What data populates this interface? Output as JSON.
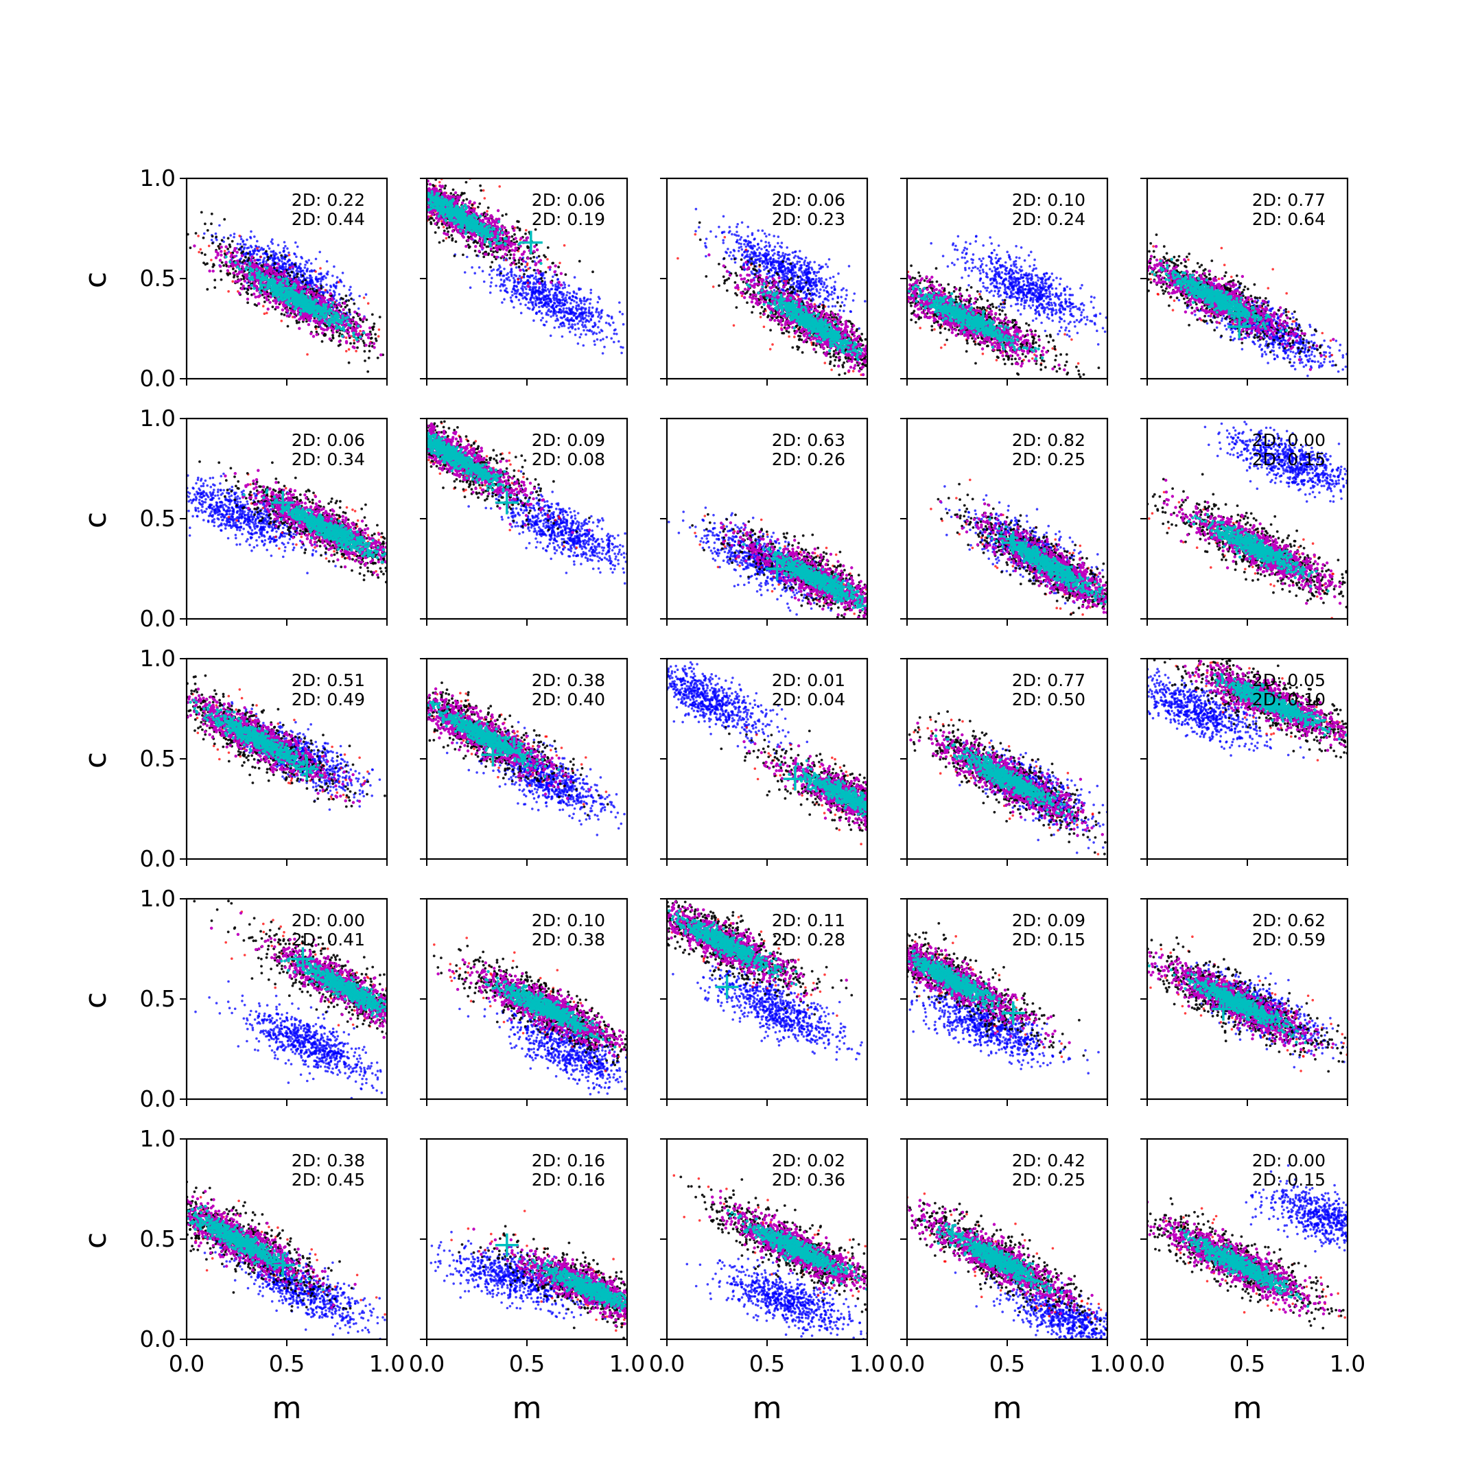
{
  "chart_data": {
    "type": "scatter",
    "rows": 5,
    "cols": 5,
    "xlabel": "m",
    "ylabel": "c",
    "xlim": [
      0.0,
      1.0
    ],
    "ylim": [
      0.0,
      1.0
    ],
    "xticks": [
      "0.0",
      "0.5",
      "1.0"
    ],
    "yticks": [
      "0.0",
      "0.5",
      "1.0"
    ],
    "colors": {
      "blue": "#0000ff",
      "red": "#ff0000",
      "black": "#000000",
      "magenta": "#bf00bf",
      "cyan": "#00bfbf"
    },
    "panels": [
      {
        "stat1": "2D: 0.22",
        "stat2": "2D: 0.44",
        "main": {
          "cx": 0.55,
          "cy": 0.4,
          "slope": -0.55
        },
        "blue": {
          "cx": 0.5,
          "cy": 0.52,
          "slope": -0.5
        },
        "cross": null
      },
      {
        "stat1": "2D: 0.06",
        "stat2": "2D: 0.19",
        "main": {
          "cx": 0.15,
          "cy": 0.82,
          "slope": -0.6
        },
        "blue": {
          "cx": 0.62,
          "cy": 0.4,
          "slope": -0.55
        },
        "cross": [
          0.52,
          0.68
        ]
      },
      {
        "stat1": "2D: 0.06",
        "stat2": "2D: 0.23",
        "main": {
          "cx": 0.72,
          "cy": 0.28,
          "slope": -0.65
        },
        "blue": {
          "cx": 0.58,
          "cy": 0.55,
          "slope": -0.55
        },
        "cross": null
      },
      {
        "stat1": "2D: 0.10",
        "stat2": "2D: 0.24",
        "main": {
          "cx": 0.3,
          "cy": 0.3,
          "slope": -0.5
        },
        "blue": {
          "cx": 0.6,
          "cy": 0.45,
          "slope": -0.5
        },
        "cross": [
          0.38,
          0.28
        ]
      },
      {
        "stat1": "2D: 0.77",
        "stat2": "2D: 0.64",
        "main": {
          "cx": 0.35,
          "cy": 0.4,
          "slope": -0.5
        },
        "blue": {
          "cx": 0.6,
          "cy": 0.25,
          "slope": -0.5
        },
        "cross": [
          0.46,
          0.26
        ]
      },
      {
        "stat1": "2D: 0.06",
        "stat2": "2D: 0.34",
        "main": {
          "cx": 0.7,
          "cy": 0.45,
          "slope": -0.5
        },
        "blue": {
          "cx": 0.28,
          "cy": 0.52,
          "slope": -0.4
        },
        "cross": [
          0.48,
          0.58
        ]
      },
      {
        "stat1": "2D: 0.09",
        "stat2": "2D: 0.08",
        "main": {
          "cx": 0.15,
          "cy": 0.8,
          "slope": -0.6
        },
        "blue": {
          "cx": 0.68,
          "cy": 0.44,
          "slope": -0.5
        },
        "cross": [
          0.4,
          0.58
        ]
      },
      {
        "stat1": "2D: 0.63",
        "stat2": "2D: 0.26",
        "main": {
          "cx": 0.75,
          "cy": 0.2,
          "slope": -0.5
        },
        "blue": {
          "cx": 0.5,
          "cy": 0.28,
          "slope": -0.5
        },
        "cross": [
          0.55,
          0.25
        ]
      },
      {
        "stat1": "2D: 0.82",
        "stat2": "2D: 0.25",
        "main": {
          "cx": 0.72,
          "cy": 0.26,
          "slope": -0.6
        },
        "blue": {
          "cx": 0.62,
          "cy": 0.33,
          "slope": -0.6
        },
        "cross": [
          0.53,
          0.38
        ]
      },
      {
        "stat1": "2D: 0.00",
        "stat2": "2D: 0.15",
        "main": {
          "cx": 0.55,
          "cy": 0.35,
          "slope": -0.5
        },
        "blue": {
          "cx": 0.72,
          "cy": 0.78,
          "slope": -0.4
        },
        "cross": null
      },
      {
        "stat1": "2D: 0.51",
        "stat2": "2D: 0.49",
        "main": {
          "cx": 0.35,
          "cy": 0.6,
          "slope": -0.55
        },
        "blue": {
          "cx": 0.55,
          "cy": 0.52,
          "slope": -0.5
        },
        "cross": [
          0.6,
          0.45
        ]
      },
      {
        "stat1": "2D: 0.38",
        "stat2": "2D: 0.40",
        "main": {
          "cx": 0.28,
          "cy": 0.62,
          "slope": -0.55
        },
        "blue": {
          "cx": 0.6,
          "cy": 0.4,
          "slope": -0.5
        },
        "cross": [
          0.33,
          0.52
        ]
      },
      {
        "stat1": "2D: 0.01",
        "stat2": "2D: 0.04",
        "main": {
          "cx": 0.92,
          "cy": 0.3,
          "slope": -0.5
        },
        "blue": {
          "cx": 0.2,
          "cy": 0.8,
          "slope": -0.5
        },
        "cross": [
          0.64,
          0.4
        ]
      },
      {
        "stat1": "2D: 0.77",
        "stat2": "2D: 0.50",
        "main": {
          "cx": 0.5,
          "cy": 0.4,
          "slope": -0.55
        },
        "blue": {
          "cx": 0.62,
          "cy": 0.35,
          "slope": -0.55
        },
        "cross": null
      },
      {
        "stat1": "2D: 0.05",
        "stat2": "2D: 0.10",
        "main": {
          "cx": 0.62,
          "cy": 0.78,
          "slope": -0.45
        },
        "blue": {
          "cx": 0.25,
          "cy": 0.74,
          "slope": -0.4
        },
        "cross": null
      },
      {
        "stat1": "2D: 0.00",
        "stat2": "2D: 0.41",
        "main": {
          "cx": 0.8,
          "cy": 0.55,
          "slope": -0.55
        },
        "blue": {
          "cx": 0.6,
          "cy": 0.28,
          "slope": -0.45
        },
        "cross": [
          0.58,
          0.7
        ]
      },
      {
        "stat1": "2D: 0.10",
        "stat2": "2D: 0.38",
        "main": {
          "cx": 0.6,
          "cy": 0.45,
          "slope": -0.5
        },
        "blue": {
          "cx": 0.7,
          "cy": 0.25,
          "slope": -0.5
        },
        "cross": null
      },
      {
        "stat1": "2D: 0.11",
        "stat2": "2D: 0.28",
        "main": {
          "cx": 0.28,
          "cy": 0.78,
          "slope": -0.5
        },
        "blue": {
          "cx": 0.55,
          "cy": 0.45,
          "slope": -0.5
        },
        "cross": [
          0.3,
          0.56
        ]
      },
      {
        "stat1": "2D: 0.09",
        "stat2": "2D: 0.15",
        "main": {
          "cx": 0.22,
          "cy": 0.6,
          "slope": -0.55
        },
        "blue": {
          "cx": 0.4,
          "cy": 0.37,
          "slope": -0.4
        },
        "cross": [
          0.53,
          0.43
        ]
      },
      {
        "stat1": "2D: 0.62",
        "stat2": "2D: 0.59",
        "main": {
          "cx": 0.45,
          "cy": 0.48,
          "slope": -0.5
        },
        "blue": {
          "cx": 0.55,
          "cy": 0.45,
          "slope": -0.5
        },
        "cross": [
          0.38,
          0.45
        ]
      },
      {
        "stat1": "2D: 0.38",
        "stat2": "2D: 0.45",
        "main": {
          "cx": 0.25,
          "cy": 0.5,
          "slope": -0.55
        },
        "blue": {
          "cx": 0.58,
          "cy": 0.25,
          "slope": -0.45
        },
        "cross": [
          0.48,
          0.37
        ]
      },
      {
        "stat1": "2D: 0.16",
        "stat2": "2D: 0.16",
        "main": {
          "cx": 0.82,
          "cy": 0.25,
          "slope": -0.45
        },
        "blue": {
          "cx": 0.45,
          "cy": 0.3,
          "slope": -0.3
        },
        "cross": [
          0.4,
          0.47
        ]
      },
      {
        "stat1": "2D: 0.02",
        "stat2": "2D: 0.36",
        "main": {
          "cx": 0.65,
          "cy": 0.45,
          "slope": -0.5
        },
        "blue": {
          "cx": 0.6,
          "cy": 0.2,
          "slope": -0.4
        },
        "cross": null
      },
      {
        "stat1": "2D: 0.42",
        "stat2": "2D: 0.25",
        "main": {
          "cx": 0.45,
          "cy": 0.4,
          "slope": -0.55
        },
        "blue": {
          "cx": 0.82,
          "cy": 0.1,
          "slope": -0.4
        },
        "cross": null
      },
      {
        "stat1": "2D: 0.00",
        "stat2": "2D: 0.15",
        "main": {
          "cx": 0.45,
          "cy": 0.38,
          "slope": -0.5
        },
        "blue": {
          "cx": 0.9,
          "cy": 0.6,
          "slope": -0.4
        },
        "cross": null
      }
    ]
  }
}
